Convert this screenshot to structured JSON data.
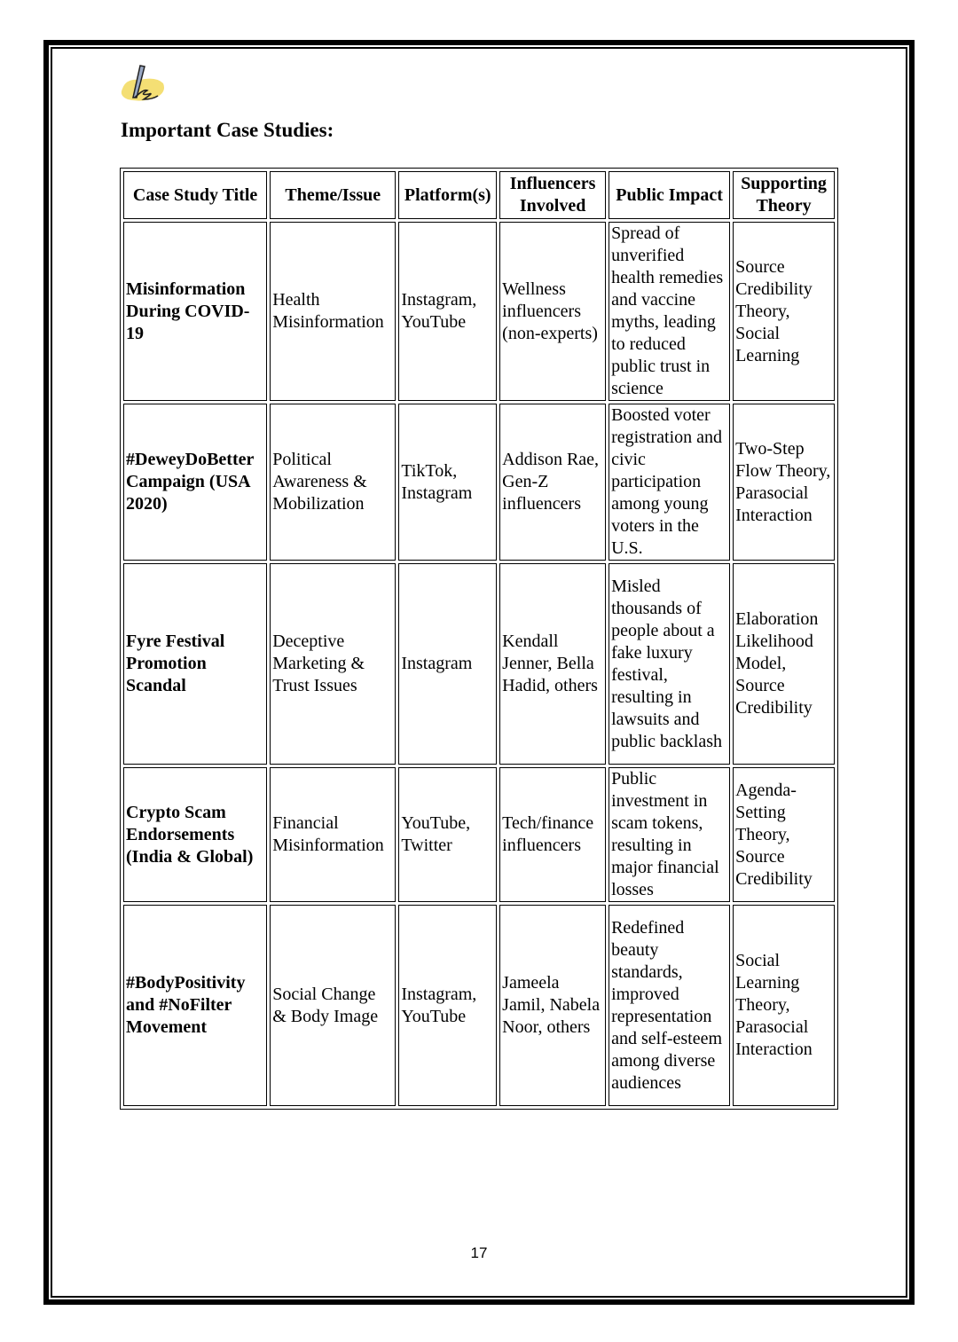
{
  "heading": "Important Case Studies:",
  "icon": "pen-writing-icon",
  "table": {
    "headers": [
      "Case Study Title",
      "Theme/Issue",
      "Platform(s)",
      "Influencers Involved",
      "Public Impact",
      "Supporting Theory"
    ],
    "rows": [
      [
        "Misinformation During COVID-19",
        "Health Misinformation",
        "Instagram, YouTube",
        "Wellness influencers (non-experts)",
        "Spread of unverified health remedies and vaccine myths, leading to reduced public trust in science",
        "Source Credibility Theory, Social Learning"
      ],
      [
        "#DeweyDoBetter Campaign (USA 2020)",
        "Political Awareness & Mobilization",
        "TikTok, Instagram",
        "Addison Rae, Gen-Z influencers",
        "Boosted voter registration and civic participation among young voters in the U.S.",
        "Two-Step Flow Theory, Parasocial Interaction"
      ],
      [
        "Fyre Festival Promotion Scandal",
        "Deceptive Marketing & Trust Issues",
        "Instagram",
        "Kendall Jenner, Bella Hadid, others",
        "Misled thousands of people about a fake luxury festival, resulting in lawsuits and public backlash",
        "Elaboration Likelihood Model, Source Credibility"
      ],
      [
        "Crypto Scam Endorsements (India & Global)",
        "Financial Misinformation",
        "YouTube, Twitter",
        "Tech/finance influencers",
        "Public investment in scam tokens, resulting in major financial losses",
        "Agenda-Setting Theory, Source Credibility"
      ],
      [
        "#BodyPositivity and #NoFilter Movement",
        "Social Change & Body Image",
        "Instagram, YouTube",
        "Jameela Jamil, Nabela Noor, others",
        "Redefined beauty standards, improved representation and self-esteem among diverse audiences",
        "Social Learning Theory, Parasocial Interaction"
      ]
    ]
  },
  "page_number": "17"
}
